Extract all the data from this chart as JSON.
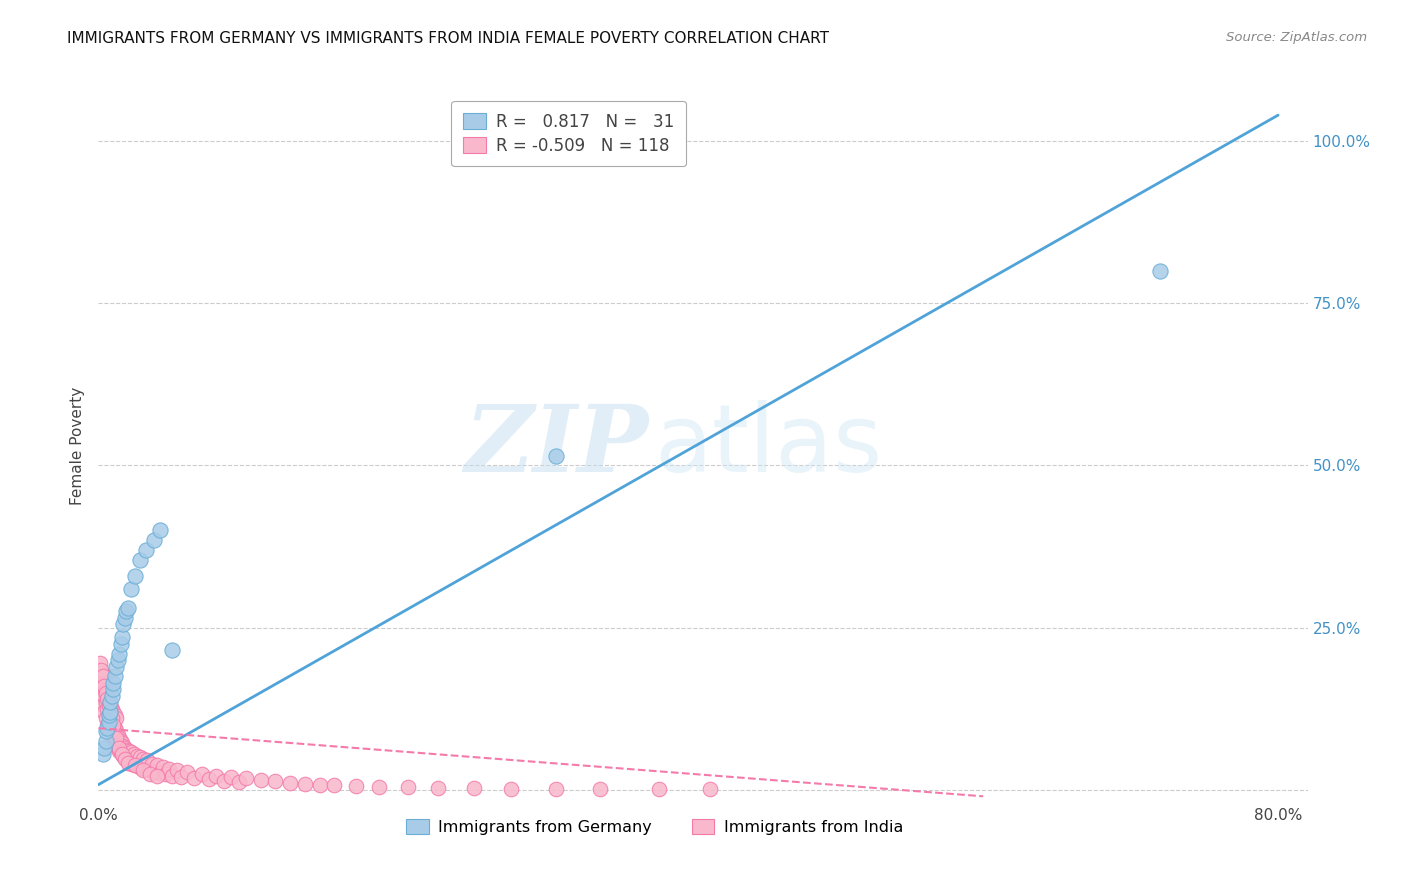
{
  "title": "IMMIGRANTS FROM GERMANY VS IMMIGRANTS FROM INDIA FEMALE POVERTY CORRELATION CHART",
  "source": "Source: ZipAtlas.com",
  "ylabel": "Female Poverty",
  "xlim": [
    0.0,
    0.82
  ],
  "ylim": [
    -0.02,
    1.08
  ],
  "germany_color": "#a8cce8",
  "germany_edge": "#6aaed6",
  "india_color": "#f9b8cc",
  "india_edge": "#f47aaa",
  "germany_line_color": "#4fa3d8",
  "india_line_color": "#f47aaa",
  "watermark_zip": "ZIP",
  "watermark_atlas": "atlas",
  "legend_R_germany": " 0.817",
  "legend_N_germany": " 31",
  "legend_R_india": "-0.509",
  "legend_N_india": "118",
  "legend_label_germany": "Immigrants from Germany",
  "legend_label_india": "Immigrants from India",
  "germany_scatter_x": [
    0.003,
    0.004,
    0.005,
    0.005,
    0.006,
    0.007,
    0.007,
    0.008,
    0.008,
    0.009,
    0.01,
    0.01,
    0.011,
    0.012,
    0.013,
    0.014,
    0.015,
    0.016,
    0.017,
    0.018,
    0.019,
    0.02,
    0.022,
    0.025,
    0.028,
    0.032,
    0.038,
    0.042,
    0.05,
    0.31,
    0.72
  ],
  "germany_scatter_y": [
    0.055,
    0.065,
    0.075,
    0.09,
    0.095,
    0.105,
    0.115,
    0.12,
    0.135,
    0.145,
    0.155,
    0.165,
    0.175,
    0.19,
    0.2,
    0.21,
    0.225,
    0.235,
    0.255,
    0.265,
    0.275,
    0.28,
    0.31,
    0.33,
    0.355,
    0.37,
    0.385,
    0.4,
    0.215,
    0.515,
    0.8
  ],
  "india_scatter_x": [
    0.001,
    0.002,
    0.002,
    0.003,
    0.003,
    0.003,
    0.004,
    0.004,
    0.004,
    0.005,
    0.005,
    0.005,
    0.005,
    0.006,
    0.006,
    0.006,
    0.007,
    0.007,
    0.007,
    0.007,
    0.008,
    0.008,
    0.008,
    0.009,
    0.009,
    0.009,
    0.01,
    0.01,
    0.01,
    0.011,
    0.011,
    0.011,
    0.012,
    0.012,
    0.012,
    0.013,
    0.013,
    0.014,
    0.014,
    0.015,
    0.015,
    0.016,
    0.016,
    0.017,
    0.017,
    0.018,
    0.018,
    0.019,
    0.019,
    0.02,
    0.021,
    0.021,
    0.022,
    0.023,
    0.024,
    0.025,
    0.026,
    0.027,
    0.028,
    0.029,
    0.03,
    0.032,
    0.033,
    0.034,
    0.036,
    0.038,
    0.04,
    0.042,
    0.044,
    0.046,
    0.048,
    0.05,
    0.053,
    0.056,
    0.06,
    0.065,
    0.07,
    0.075,
    0.08,
    0.085,
    0.09,
    0.095,
    0.1,
    0.11,
    0.12,
    0.13,
    0.14,
    0.15,
    0.16,
    0.175,
    0.19,
    0.21,
    0.23,
    0.255,
    0.28,
    0.31,
    0.34,
    0.38,
    0.415,
    0.001,
    0.002,
    0.003,
    0.004,
    0.005,
    0.006,
    0.007,
    0.008,
    0.009,
    0.01,
    0.012,
    0.014,
    0.016,
    0.018,
    0.02,
    0.025,
    0.03,
    0.035,
    0.04
  ],
  "india_scatter_y": [
    0.17,
    0.155,
    0.18,
    0.13,
    0.155,
    0.175,
    0.12,
    0.145,
    0.165,
    0.11,
    0.135,
    0.155,
    0.175,
    0.1,
    0.125,
    0.145,
    0.095,
    0.115,
    0.135,
    0.155,
    0.09,
    0.11,
    0.13,
    0.085,
    0.105,
    0.125,
    0.08,
    0.1,
    0.12,
    0.075,
    0.095,
    0.115,
    0.07,
    0.09,
    0.11,
    0.065,
    0.085,
    0.06,
    0.08,
    0.058,
    0.075,
    0.055,
    0.072,
    0.052,
    0.068,
    0.05,
    0.065,
    0.048,
    0.062,
    0.045,
    0.06,
    0.042,
    0.058,
    0.04,
    0.055,
    0.038,
    0.052,
    0.036,
    0.05,
    0.034,
    0.048,
    0.032,
    0.046,
    0.03,
    0.04,
    0.028,
    0.038,
    0.026,
    0.035,
    0.024,
    0.032,
    0.022,
    0.03,
    0.02,
    0.028,
    0.018,
    0.025,
    0.016,
    0.022,
    0.014,
    0.02,
    0.012,
    0.018,
    0.015,
    0.013,
    0.011,
    0.009,
    0.008,
    0.007,
    0.006,
    0.005,
    0.004,
    0.003,
    0.003,
    0.002,
    0.002,
    0.001,
    0.001,
    0.001,
    0.195,
    0.185,
    0.175,
    0.16,
    0.15,
    0.14,
    0.13,
    0.12,
    0.11,
    0.1,
    0.08,
    0.065,
    0.055,
    0.048,
    0.042,
    0.038,
    0.03,
    0.025,
    0.022
  ],
  "germany_trend_x": [
    0.0,
    0.8
  ],
  "germany_trend_y": [
    0.008,
    1.04
  ],
  "india_trend_x": [
    0.0,
    0.6
  ],
  "india_trend_y": [
    0.095,
    -0.01
  ],
  "background_color": "#ffffff",
  "grid_color": "#cccccc",
  "grid_linewidth": 0.8,
  "x_tick_positions": [
    0.0,
    0.2,
    0.4,
    0.6,
    0.8
  ],
  "x_tick_labels": [
    "0.0%",
    "",
    "",
    "",
    "80.0%"
  ],
  "y_tick_positions": [
    0.0,
    0.25,
    0.5,
    0.75,
    1.0
  ],
  "y_tick_labels_right": [
    "",
    "25.0%",
    "50.0%",
    "75.0%",
    "100.0%"
  ]
}
